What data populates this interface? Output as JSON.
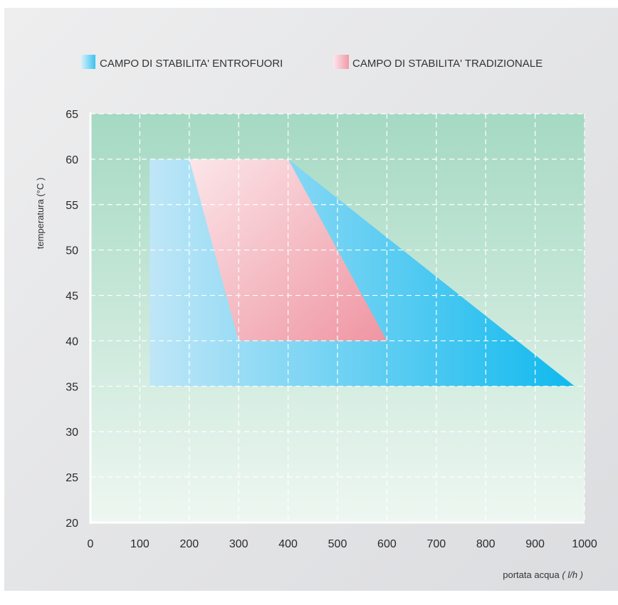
{
  "legend": {
    "entrofuori": "CAMPO DI STABILITA' ENTROFUORI",
    "tradizionale": "CAMPO DI STABILITA' TRADIZIONALE"
  },
  "axes": {
    "ylabel": "temperatura (°C )",
    "xlabel_main": "portata acqua ",
    "xlabel_unit": "( l/h )"
  },
  "colors": {
    "plot_bg_top": "#a5d9c4",
    "plot_bg_bottom": "#eef7f1",
    "entrofuori_light": "#bfe6f7",
    "entrofuori_dark": "#0fb9ee",
    "tradizionale_light": "#fbe6e9",
    "tradizionale_dark": "#ef95a2",
    "grid": "#ffffff"
  },
  "chart_data": {
    "type": "area",
    "title": "",
    "xlabel": "portata acqua ( l/h )",
    "ylabel": "temperatura (°C )",
    "xlim": [
      0,
      1000
    ],
    "ylim": [
      20,
      65
    ],
    "x_ticks": [
      0,
      100,
      200,
      300,
      400,
      500,
      600,
      700,
      800,
      900,
      1000
    ],
    "y_ticks": [
      20,
      25,
      30,
      35,
      40,
      45,
      50,
      55,
      60,
      65
    ],
    "grid": true,
    "legend_position": "top",
    "series": [
      {
        "name": "CAMPO DI STABILITA' ENTROFUORI",
        "polygon": [
          [
            120,
            60
          ],
          [
            400,
            60
          ],
          [
            980,
            35
          ],
          [
            120,
            35
          ]
        ]
      },
      {
        "name": "CAMPO DI STABILITA' TRADIZIONALE",
        "polygon": [
          [
            200,
            60
          ],
          [
            400,
            60
          ],
          [
            600,
            40
          ],
          [
            300,
            40
          ]
        ]
      }
    ]
  }
}
